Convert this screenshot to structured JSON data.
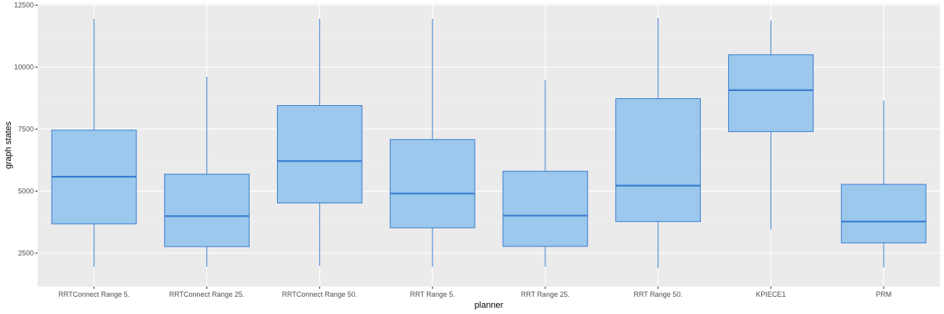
{
  "chart_data": {
    "type": "box",
    "xlabel": "planner",
    "ylabel": "graph states",
    "ylim": [
      1150,
      12550
    ],
    "yticks": [
      2500,
      5000,
      7500,
      10000,
      12500
    ],
    "ytick_labels": [
      "2500",
      "5000",
      "7500",
      "10000",
      "12500"
    ],
    "grid": true,
    "colors": {
      "fill": "#9bc8ec",
      "stroke": "#3b7dd0",
      "panel": "#ebebeb",
      "grid": "#ffffff"
    },
    "categories": [
      "RRTConnect Range 5.",
      "RRTConnect Range 25.",
      "RRTConnect Range 50.",
      "RRT Range 5.",
      "RRT Range 25.",
      "RRT Range 50.",
      "KPIECE1",
      "PRM"
    ],
    "boxes": [
      {
        "min": 1950,
        "q1": 3680,
        "median": 5580,
        "q3": 7460,
        "max": 11950
      },
      {
        "min": 1950,
        "q1": 2760,
        "median": 3990,
        "q3": 5680,
        "max": 9610
      },
      {
        "min": 1980,
        "q1": 4520,
        "median": 6210,
        "q3": 8450,
        "max": 11950
      },
      {
        "min": 1950,
        "q1": 3520,
        "median": 4900,
        "q3": 7080,
        "max": 11950
      },
      {
        "min": 1950,
        "q1": 2770,
        "median": 4010,
        "q3": 5800,
        "max": 9480
      },
      {
        "min": 1900,
        "q1": 3770,
        "median": 5220,
        "q3": 8730,
        "max": 11980
      },
      {
        "min": 3450,
        "q1": 7400,
        "median": 9070,
        "q3": 10500,
        "max": 11880
      },
      {
        "min": 1920,
        "q1": 2910,
        "median": 3770,
        "q3": 5270,
        "max": 8650
      }
    ]
  }
}
